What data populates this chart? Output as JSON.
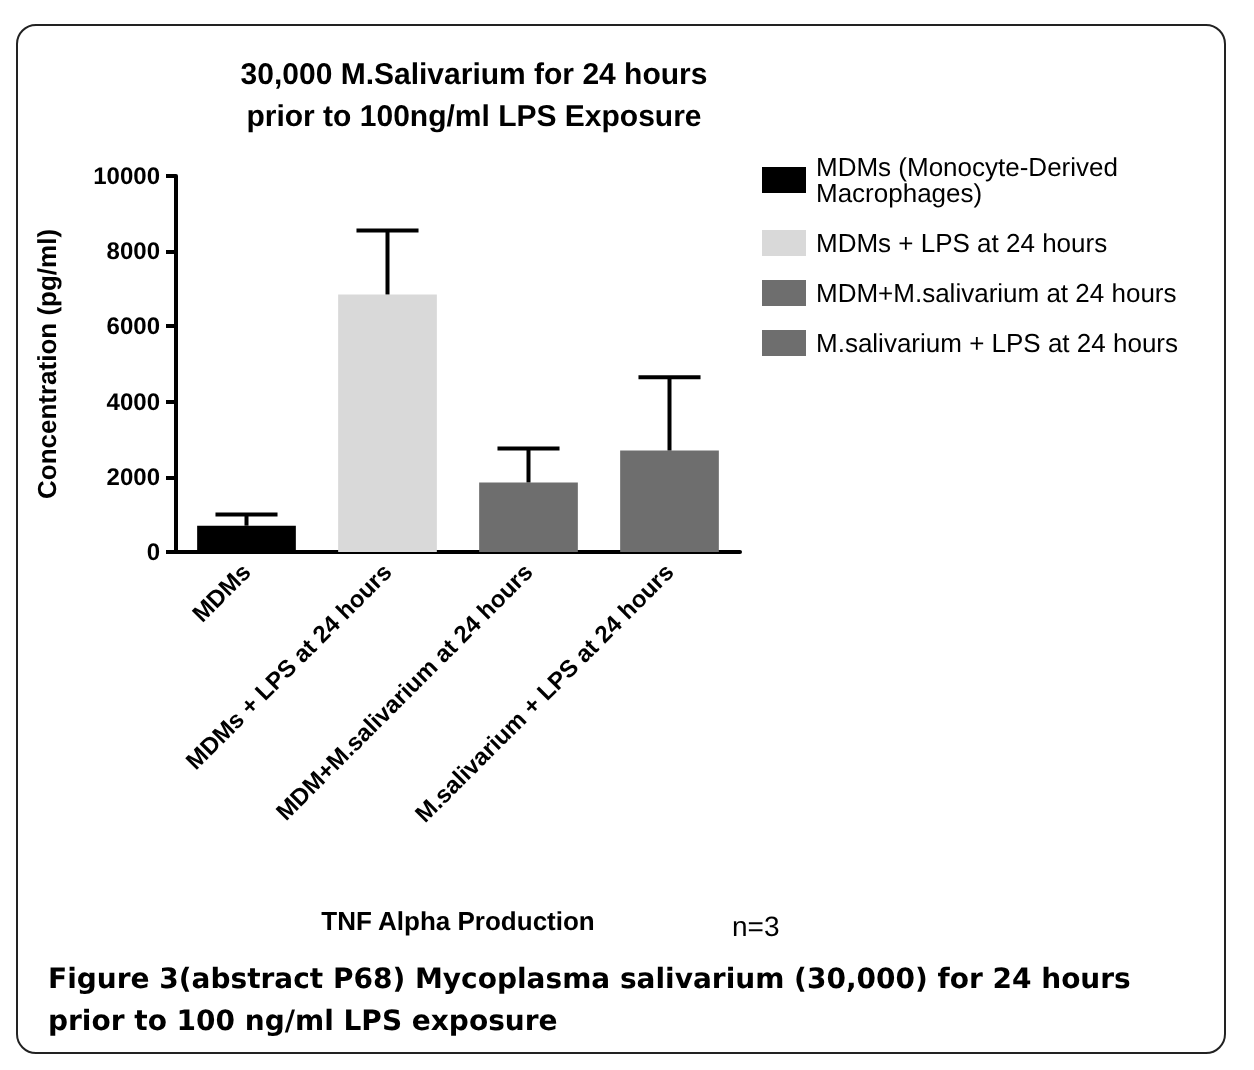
{
  "chart_data": {
    "type": "bar",
    "title": "30,000 M.Salivarium for 24 hours\nprior to 100ng/ml LPS Exposure",
    "categories": [
      "MDMs",
      "MDMs + LPS at 24 hours",
      "MDM+M.salivarium at 24 hours",
      "M.salivarium + LPS at 24 hours"
    ],
    "series": [
      {
        "name": "MDMs (Monocyte-Derived Macrophages)",
        "color": "#000000",
        "values": [
          700,
          null,
          null,
          null
        ],
        "errors": [
          [
            700,
            1000
          ],
          null,
          null,
          null
        ]
      },
      {
        "name": "MDMs + LPS at 24 hours",
        "color": "#d9d9d9",
        "values": [
          null,
          6850,
          null,
          null
        ],
        "errors": [
          null,
          [
            6850,
            8550
          ],
          null,
          null
        ]
      },
      {
        "name": "MDM+M.salivarium at 24 hours",
        "color": "#6e6e6e",
        "values": [
          null,
          null,
          1850,
          null
        ],
        "errors": [
          null,
          null,
          [
            1850,
            2750
          ],
          null
        ]
      },
      {
        "name": "M.salivarium + LPS at 24 hours",
        "color": "#6e6e6e",
        "values": [
          null,
          null,
          null,
          2700
        ],
        "errors": [
          null,
          null,
          null,
          [
            2700,
            4650
          ]
        ]
      }
    ],
    "xlabel": "TNF Alpha Production",
    "ylabel": "Concentration (pg/ml)",
    "ylim": [
      0,
      10000
    ],
    "yticks": [
      0,
      2000,
      4000,
      6000,
      8000,
      10000
    ],
    "grid": false,
    "legend": "right",
    "annotations": [
      "n=3",
      "Figure 3(abstract P68) Mycoplasma salivarium (30,000) for 24 hours prior to 100 ng/ml LPS exposure"
    ]
  }
}
